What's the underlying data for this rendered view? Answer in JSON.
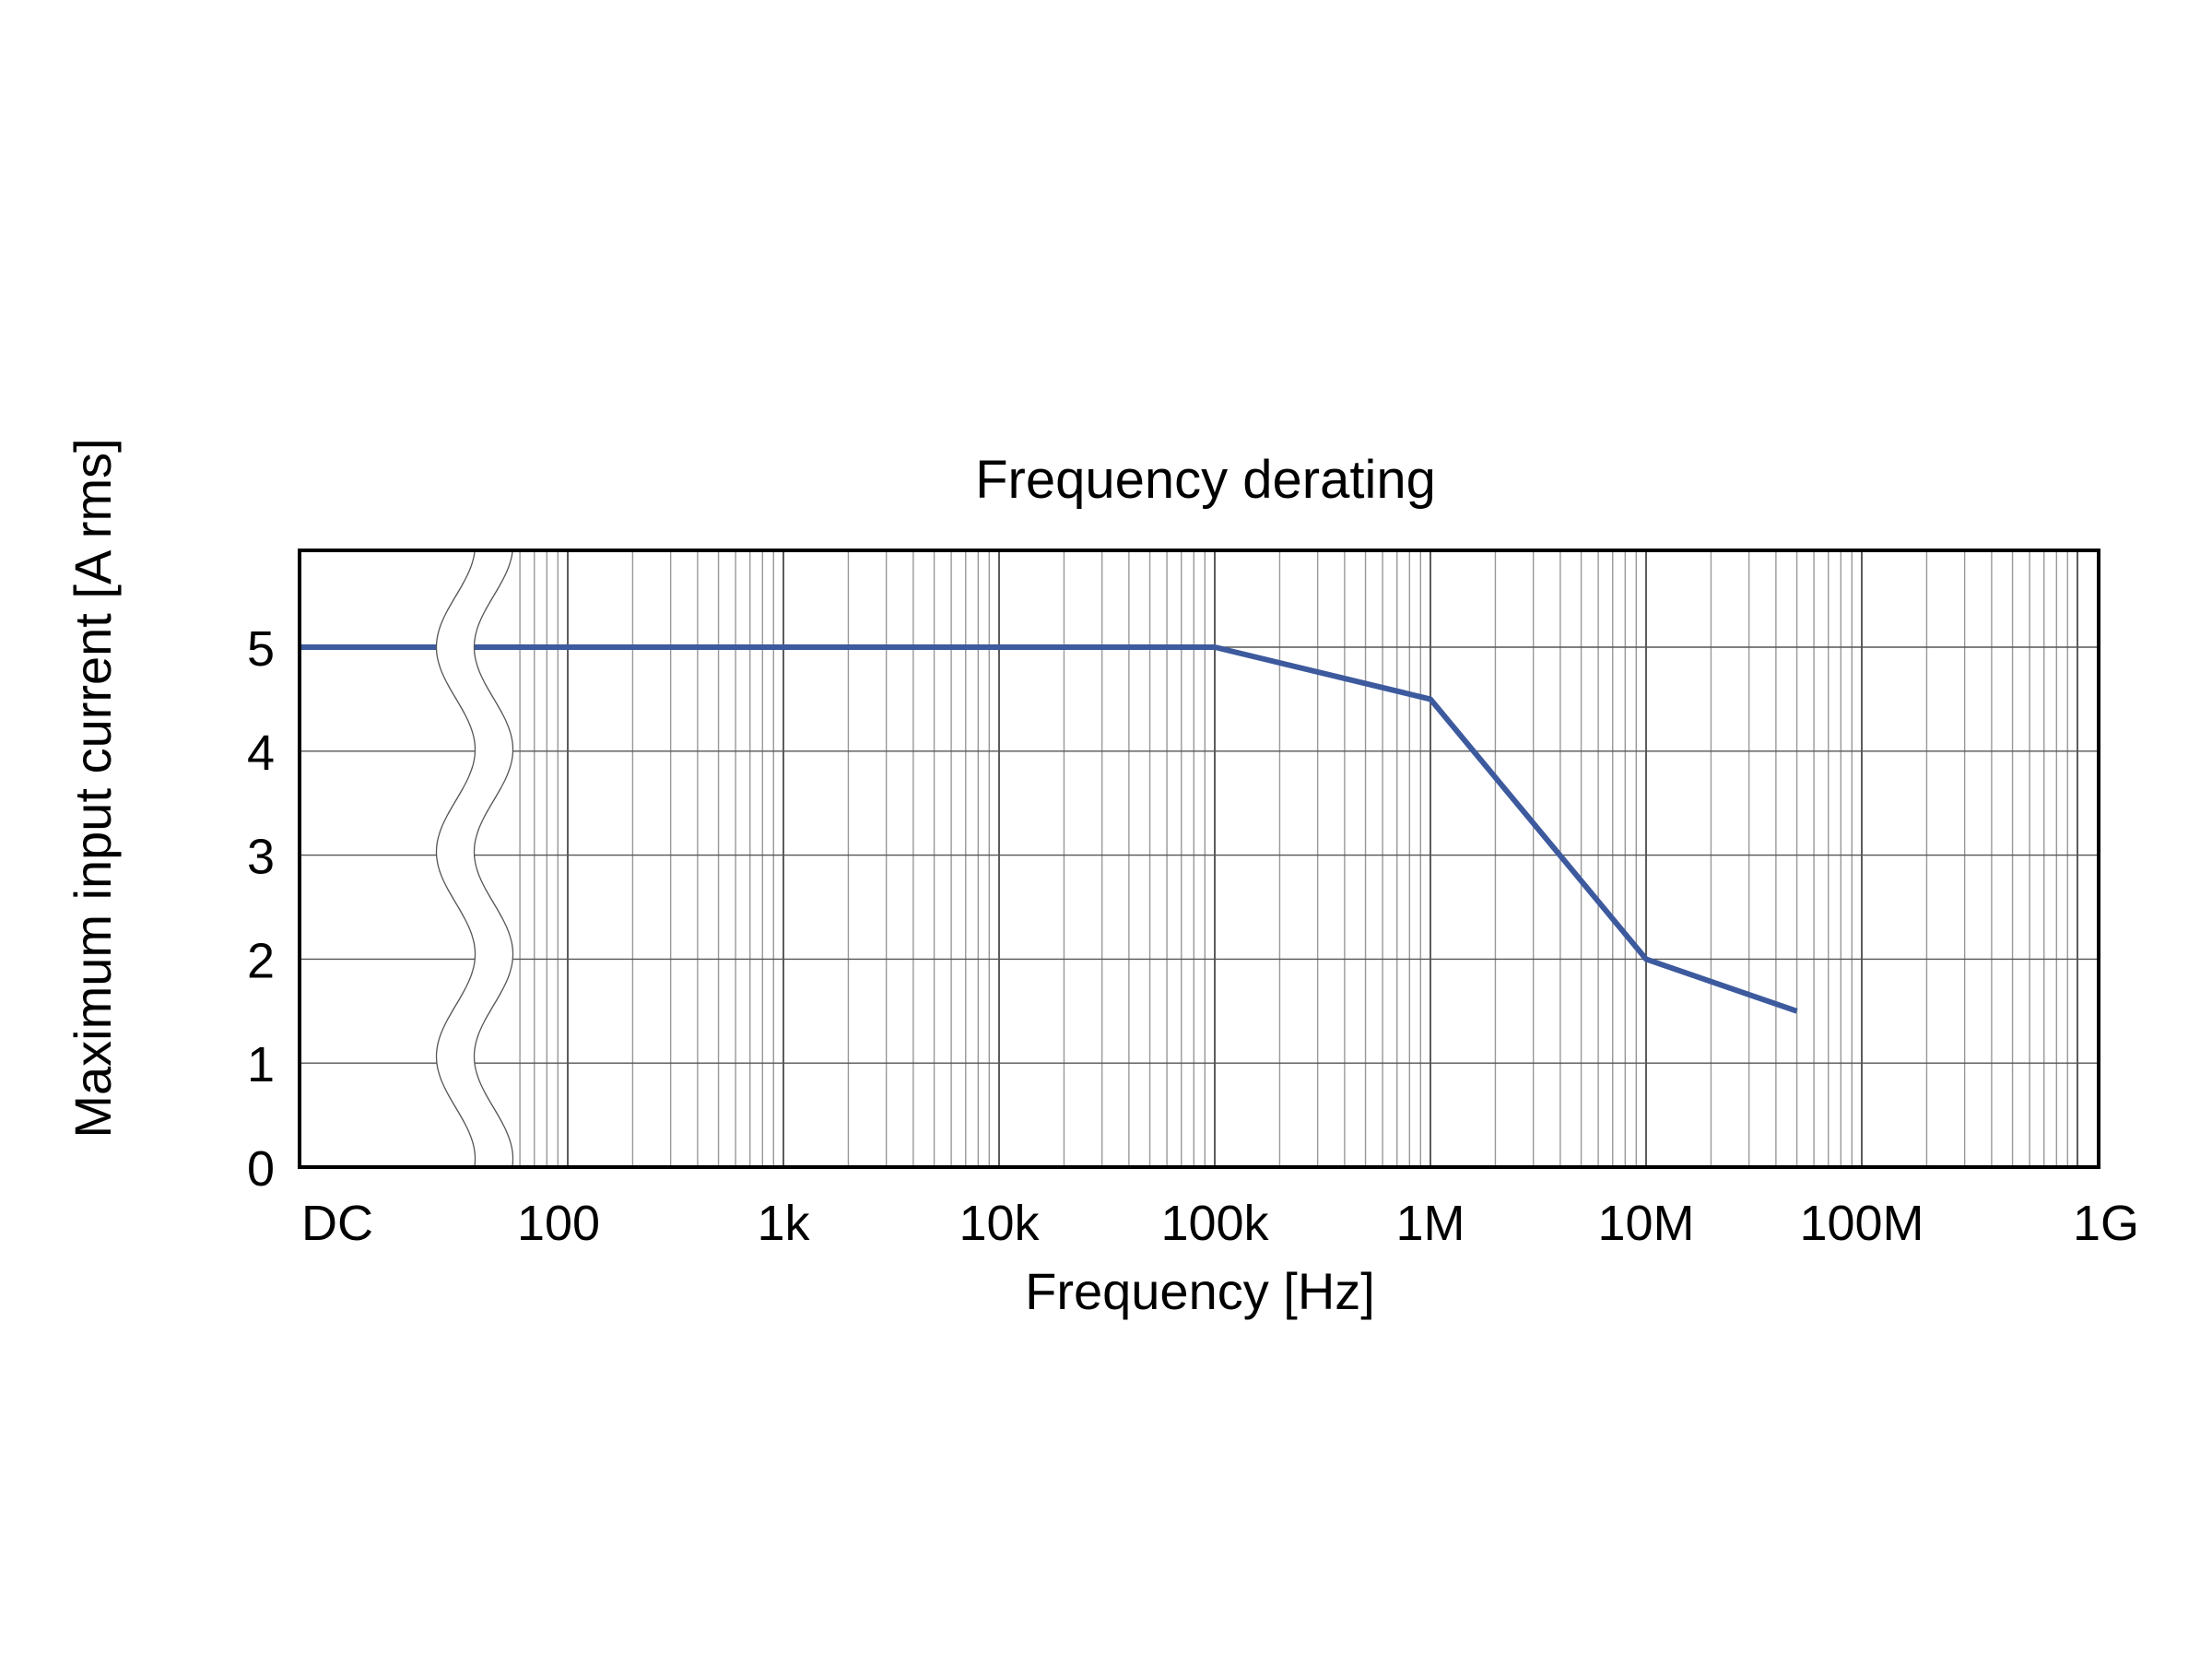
{
  "chart_data": {
    "type": "line",
    "title": "Frequency derating",
    "xlabel": "Frequency [Hz]",
    "ylabel": "Maximum input current [A rms]",
    "x_scale": "log with axis break after DC",
    "x_tick_labels": [
      "DC",
      "100",
      "1k",
      "10k",
      "100k",
      "1M",
      "10M",
      "100M",
      "1G"
    ],
    "x_tick_values": [
      0,
      100,
      1000,
      10000,
      100000,
      1000000,
      10000000,
      100000000,
      1000000000
    ],
    "y_tick_labels": [
      "0",
      "1",
      "2",
      "3",
      "4",
      "5"
    ],
    "ylim": [
      0,
      5.9
    ],
    "grid": true,
    "series": [
      {
        "color": "#3d5a9e",
        "points": [
          {
            "x": "DC",
            "y": 5
          },
          {
            "x": 100000,
            "y": 5
          },
          {
            "x": 1000000,
            "y": 4.5
          },
          {
            "x": 10000000,
            "y": 2
          },
          {
            "x": 50000000,
            "y": 1.5
          }
        ]
      }
    ]
  }
}
